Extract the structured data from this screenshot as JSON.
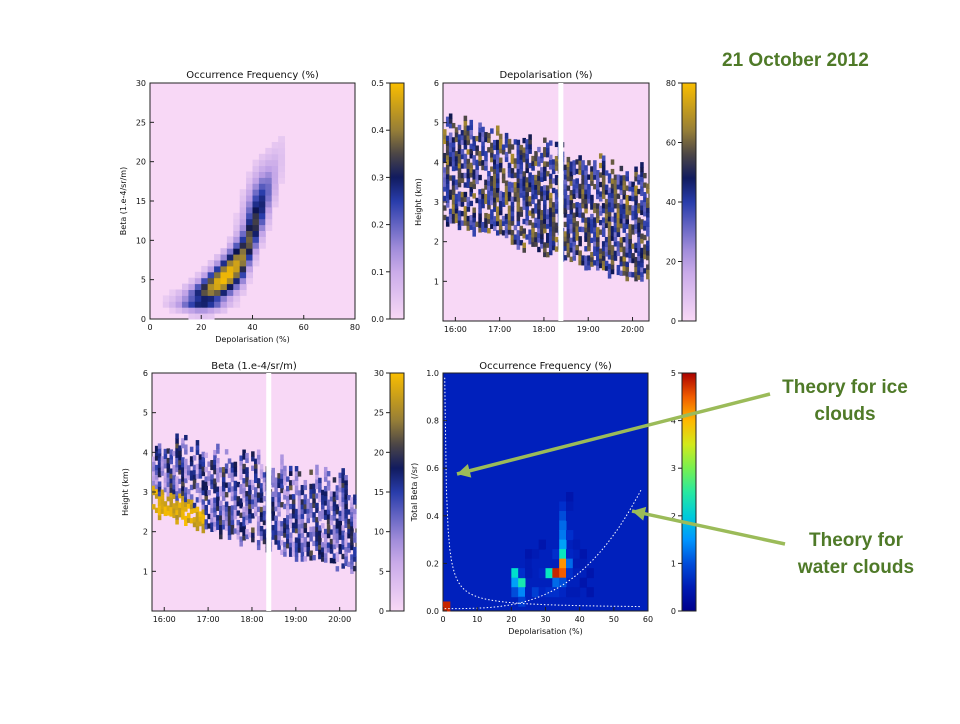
{
  "header": {
    "date": "21 October 2012"
  },
  "annotations": [
    {
      "text_line1": "Theory for ice",
      "text_line2": "clouds"
    },
    {
      "text_line1": "Theory for",
      "text_line2": "water clouds"
    }
  ],
  "colors": {
    "annotation": "#4f7a28",
    "arrow": "#9bbb59",
    "background_pink": "#f8d8f6"
  },
  "chart_data": [
    {
      "type": "heatmap",
      "title": "Occurrence Frequency (%)",
      "xlabel": "Depolarisation (%)",
      "ylabel": "Beta (1.e-4/sr/m)",
      "xlim": [
        0,
        80
      ],
      "ylim": [
        0,
        30
      ],
      "xticks": [
        "0",
        "20",
        "40",
        "60",
        "80"
      ],
      "yticks": [
        "0",
        "5",
        "10",
        "15",
        "20",
        "25",
        "30"
      ],
      "colorbar": {
        "min": 0.0,
        "max": 0.5,
        "ticks": [
          "0.0",
          "0.1",
          "0.2",
          "0.3",
          "0.4",
          "0.5"
        ]
      },
      "note": "occurrence concentrated at low beta (0-5) and depolarisation 5-40%"
    },
    {
      "type": "heatmap",
      "title": "Depolarisation (%)",
      "xlabel": "",
      "ylabel": "Height (km)",
      "ylim": [
        0,
        6
      ],
      "xticks": [
        "16:00",
        "17:00",
        "18:00",
        "19:00",
        "20:00"
      ],
      "yticks": [
        "1",
        "2",
        "3",
        "4",
        "5",
        "6"
      ],
      "colorbar": {
        "min": 0,
        "max": 80,
        "ticks": [
          "0",
          "20",
          "40",
          "60",
          "80"
        ]
      }
    },
    {
      "type": "heatmap",
      "title": "Beta (1.e-4/sr/m)",
      "xlabel": "",
      "ylabel": "Height (km)",
      "ylim": [
        0,
        6
      ],
      "xticks": [
        "16:00",
        "17:00",
        "18:00",
        "19:00",
        "20:00"
      ],
      "yticks": [
        "1",
        "2",
        "3",
        "4",
        "5",
        "6"
      ],
      "colorbar": {
        "min": 0,
        "max": 30,
        "ticks": [
          "0",
          "5",
          "10",
          "15",
          "20",
          "25",
          "30"
        ]
      }
    },
    {
      "type": "heatmap",
      "title": "Occurrence Frequency (%)",
      "xlabel": "Depolarisation (%)",
      "ylabel": "Total Beta (/sr)",
      "xlim": [
        0,
        60
      ],
      "ylim": [
        0,
        1.0
      ],
      "xticks": [
        "0",
        "10",
        "20",
        "30",
        "40",
        "50",
        "60"
      ],
      "yticks": [
        "0.0",
        "0.2",
        "0.4",
        "0.6",
        "0.8",
        "1.0"
      ],
      "colorbar": {
        "min": 0,
        "max": 5,
        "ticks": [
          "0",
          "1",
          "2",
          "3",
          "4",
          "5"
        ]
      },
      "cells": [
        {
          "x": 0,
          "y": 0.0,
          "v": 4.8
        },
        {
          "x": 20,
          "y": 0.14,
          "v": 2.2
        },
        {
          "x": 20,
          "y": 0.1,
          "v": 1.6
        },
        {
          "x": 20,
          "y": 0.06,
          "v": 1.0
        },
        {
          "x": 22,
          "y": 0.1,
          "v": 2.4
        },
        {
          "x": 22,
          "y": 0.06,
          "v": 1.4
        },
        {
          "x": 22,
          "y": 0.14,
          "v": 0.8
        },
        {
          "x": 22,
          "y": 0.02,
          "v": 0.9
        },
        {
          "x": 24,
          "y": 0.22,
          "v": 0.4
        },
        {
          "x": 24,
          "y": 0.18,
          "v": 0.5
        },
        {
          "x": 24,
          "y": 0.14,
          "v": 0.5
        },
        {
          "x": 24,
          "y": 0.06,
          "v": 0.6
        },
        {
          "x": 26,
          "y": 0.22,
          "v": 0.5
        },
        {
          "x": 26,
          "y": 0.18,
          "v": 0.6
        },
        {
          "x": 26,
          "y": 0.1,
          "v": 0.6
        },
        {
          "x": 26,
          "y": 0.06,
          "v": 0.9
        },
        {
          "x": 28,
          "y": 0.26,
          "v": 0.4
        },
        {
          "x": 28,
          "y": 0.18,
          "v": 0.6
        },
        {
          "x": 28,
          "y": 0.14,
          "v": 0.7
        },
        {
          "x": 28,
          "y": 0.06,
          "v": 0.7
        },
        {
          "x": 30,
          "y": 0.22,
          "v": 0.6
        },
        {
          "x": 30,
          "y": 0.14,
          "v": 2.3
        },
        {
          "x": 30,
          "y": 0.06,
          "v": 0.8
        },
        {
          "x": 32,
          "y": 0.3,
          "v": 0.6
        },
        {
          "x": 32,
          "y": 0.22,
          "v": 0.8
        },
        {
          "x": 32,
          "y": 0.14,
          "v": 4.8
        },
        {
          "x": 32,
          "y": 0.1,
          "v": 1.2
        },
        {
          "x": 32,
          "y": 0.06,
          "v": 0.8
        },
        {
          "x": 34,
          "y": 0.42,
          "v": 0.8
        },
        {
          "x": 34,
          "y": 0.38,
          "v": 1.0
        },
        {
          "x": 34,
          "y": 0.34,
          "v": 1.2
        },
        {
          "x": 34,
          "y": 0.3,
          "v": 1.3
        },
        {
          "x": 34,
          "y": 0.26,
          "v": 1.6
        },
        {
          "x": 34,
          "y": 0.22,
          "v": 2.3
        },
        {
          "x": 34,
          "y": 0.18,
          "v": 4.2
        },
        {
          "x": 34,
          "y": 0.14,
          "v": 4.5
        },
        {
          "x": 34,
          "y": 0.1,
          "v": 1.0
        },
        {
          "x": 34,
          "y": 0.06,
          "v": 0.7
        },
        {
          "x": 36,
          "y": 0.46,
          "v": 0.4
        },
        {
          "x": 36,
          "y": 0.42,
          "v": 0.5
        },
        {
          "x": 36,
          "y": 0.38,
          "v": 0.6
        },
        {
          "x": 36,
          "y": 0.3,
          "v": 0.8
        },
        {
          "x": 36,
          "y": 0.22,
          "v": 0.7
        },
        {
          "x": 36,
          "y": 0.18,
          "v": 1.2
        },
        {
          "x": 36,
          "y": 0.14,
          "v": 0.8
        },
        {
          "x": 36,
          "y": 0.06,
          "v": 0.5
        },
        {
          "x": 38,
          "y": 0.26,
          "v": 0.5
        },
        {
          "x": 38,
          "y": 0.18,
          "v": 0.5
        },
        {
          "x": 38,
          "y": 0.14,
          "v": 0.6
        },
        {
          "x": 38,
          "y": 0.06,
          "v": 0.5
        },
        {
          "x": 40,
          "y": 0.22,
          "v": 0.4
        },
        {
          "x": 40,
          "y": 0.18,
          "v": 0.5
        },
        {
          "x": 40,
          "y": 0.1,
          "v": 0.4
        },
        {
          "x": 42,
          "y": 0.14,
          "v": 0.4
        },
        {
          "x": 42,
          "y": 0.06,
          "v": 0.4
        }
      ],
      "cell_size": {
        "x": 2,
        "y": 0.04
      }
    }
  ]
}
